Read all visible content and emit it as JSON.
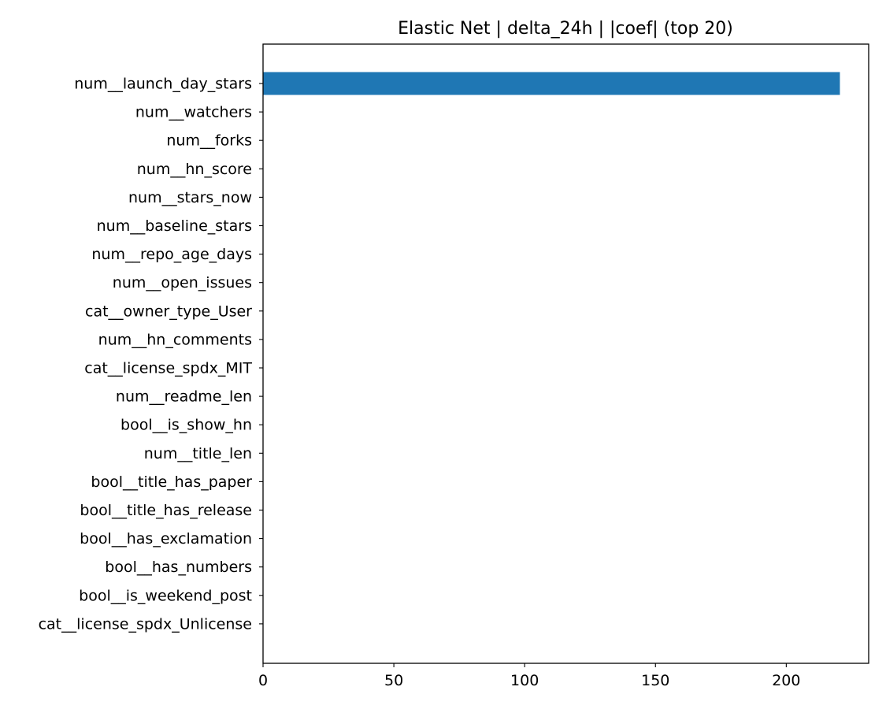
{
  "chart_data": {
    "type": "bar",
    "orientation": "horizontal",
    "title": "Elastic Net | delta_24h | |coef| (top 20)",
    "xlabel": "",
    "ylabel": "",
    "xlim": [
      0,
      231.5
    ],
    "xticks": [
      0,
      50,
      100,
      150,
      200
    ],
    "grid": false,
    "bar_color": "#1f77b4",
    "categories": [
      "num__launch_day_stars",
      "num__watchers",
      "num__forks",
      "num__hn_score",
      "num__stars_now",
      "num__baseline_stars",
      "num__repo_age_days",
      "num__open_issues",
      "cat__owner_type_User",
      "num__hn_comments",
      "cat__license_spdx_MIT",
      "num__readme_len",
      "bool__is_show_hn",
      "num__title_len",
      "bool__title_has_paper",
      "bool__title_has_release",
      "bool__has_exclamation",
      "bool__has_numbers",
      "bool__is_weekend_post",
      "cat__license_spdx_Unlicense"
    ],
    "values": [
      220.5,
      0,
      0,
      0,
      0,
      0,
      0,
      0,
      0,
      0,
      0,
      0,
      0,
      0,
      0,
      0,
      0,
      0,
      0,
      0
    ]
  }
}
